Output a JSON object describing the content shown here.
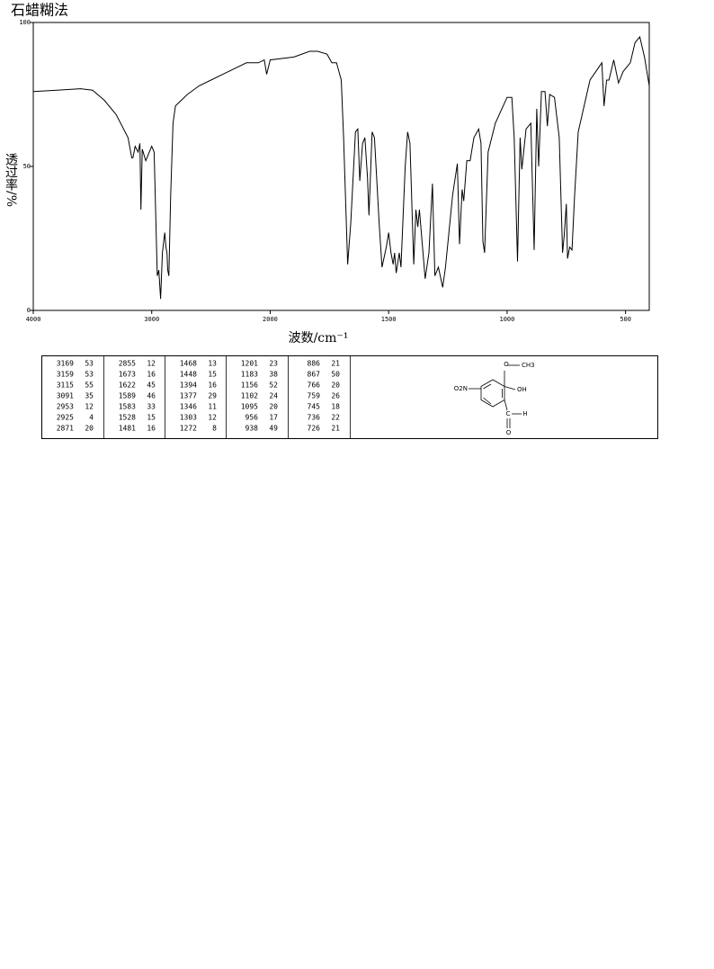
{
  "chart_data": {
    "type": "line",
    "title": "石蜡糊法",
    "xlabel": "波数/cm⁻¹",
    "ylabel": "透过率/%",
    "color": "#000000",
    "xlim": [
      4000,
      400
    ],
    "xbreak": 2000,
    "xticks": [
      4000,
      3000,
      2000,
      1500,
      1000,
      500
    ],
    "ylim": [
      0,
      100
    ],
    "yticks": [
      0,
      50,
      100
    ],
    "x": [
      4000,
      3800,
      3600,
      3500,
      3400,
      3300,
      3200,
      3169,
      3159,
      3140,
      3115,
      3100,
      3091,
      3080,
      3050,
      3000,
      2980,
      2953,
      2940,
      2925,
      2910,
      2890,
      2880,
      2871,
      2865,
      2855,
      2840,
      2820,
      2800,
      2750,
      2700,
      2600,
      2500,
      2400,
      2300,
      2200,
      2100,
      2050,
      2030,
      2000,
      1900,
      1833,
      1800,
      1760,
      1740,
      1720,
      1700,
      1690,
      1673,
      1660,
      1640,
      1630,
      1622,
      1610,
      1600,
      1589,
      1583,
      1570,
      1560,
      1540,
      1528,
      1510,
      1500,
      1490,
      1481,
      1475,
      1468,
      1455,
      1448,
      1430,
      1420,
      1410,
      1394,
      1385,
      1377,
      1370,
      1346,
      1330,
      1315,
      1305,
      1290,
      1272,
      1260,
      1230,
      1210,
      1201,
      1190,
      1183,
      1170,
      1156,
      1140,
      1120,
      1110,
      1102,
      1095,
      1080,
      1050,
      1000,
      980,
      970,
      956,
      945,
      938,
      920,
      900,
      886,
      875,
      867,
      855,
      840,
      830,
      820,
      800,
      780,
      766,
      759,
      750,
      745,
      736,
      726,
      715,
      700,
      650,
      600,
      591,
      580,
      570,
      550,
      530,
      510,
      480,
      460,
      440,
      420,
      400
    ],
    "values": [
      76,
      76.5,
      77,
      76.5,
      73,
      68,
      60,
      53,
      53,
      57,
      55,
      58,
      35,
      56,
      52,
      57,
      55,
      12,
      14,
      4,
      20,
      27,
      22,
      20,
      14,
      12,
      40,
      65,
      71,
      73,
      75,
      78,
      80,
      82,
      84,
      86,
      86,
      87,
      82,
      87,
      88,
      90,
      90,
      89,
      86,
      86,
      80,
      60,
      16,
      30,
      62,
      63,
      45,
      58,
      60,
      46,
      33,
      62,
      60,
      30,
      15,
      22,
      27,
      20,
      16,
      20,
      13,
      20,
      15,
      50,
      62,
      58,
      16,
      35,
      29,
      35,
      11,
      20,
      44,
      12,
      15,
      8,
      15,
      40,
      51,
      23,
      42,
      38,
      52,
      52,
      60,
      63,
      58,
      24,
      20,
      55,
      65,
      74,
      74,
      60,
      17,
      60,
      49,
      63,
      65,
      21,
      70,
      50,
      76,
      76,
      64,
      75,
      74,
      60,
      20,
      26,
      37,
      18,
      22,
      21,
      40,
      62,
      80,
      86,
      71,
      80,
      80,
      87,
      79,
      83,
      86,
      93,
      95,
      88,
      78
    ]
  },
  "peak_table": [
    [
      [
        "3169",
        "53"
      ],
      [
        "3159",
        "53"
      ],
      [
        "3115",
        "55"
      ],
      [
        "3091",
        "35"
      ],
      [
        "2953",
        "12"
      ],
      [
        "2925",
        "4"
      ],
      [
        "2871",
        "20"
      ]
    ],
    [
      [
        "2855",
        "12"
      ],
      [
        "1673",
        "16"
      ],
      [
        "1622",
        "45"
      ],
      [
        "1589",
        "46"
      ],
      [
        "1583",
        "33"
      ],
      [
        "1528",
        "15"
      ],
      [
        "1481",
        "16"
      ]
    ],
    [
      [
        "1468",
        "13"
      ],
      [
        "1448",
        "15"
      ],
      [
        "1394",
        "16"
      ],
      [
        "1377",
        "29"
      ],
      [
        "1346",
        "11"
      ],
      [
        "1303",
        "12"
      ],
      [
        "1272",
        "8"
      ]
    ],
    [
      [
        "1201",
        "23"
      ],
      [
        "1183",
        "38"
      ],
      [
        "1156",
        "52"
      ],
      [
        "1102",
        "24"
      ],
      [
        "1095",
        "20"
      ],
      [
        "956",
        "17"
      ],
      [
        "938",
        "49"
      ]
    ],
    [
      [
        "886",
        "21"
      ],
      [
        "867",
        "50"
      ],
      [
        "766",
        "20"
      ],
      [
        "759",
        "26"
      ],
      [
        "745",
        "18"
      ],
      [
        "736",
        "22"
      ],
      [
        "726",
        "21"
      ]
    ]
  ],
  "structure": {
    "methoxy_o": "O",
    "methyl": "CH3",
    "hydroxyl": "OH",
    "nitro": "O2N",
    "aldehyde_c": "C",
    "aldehyde_h": "H",
    "aldehyde_o": "O"
  }
}
